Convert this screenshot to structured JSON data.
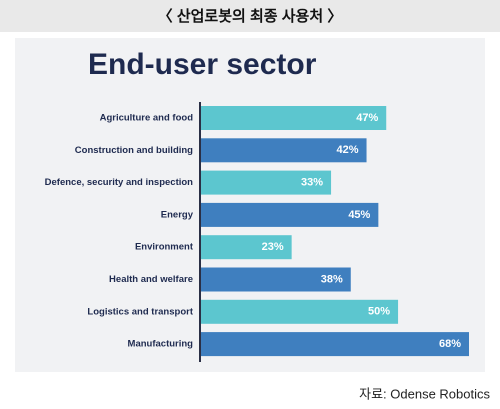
{
  "header": "〈 산업로봇의 최종 사용처 〉",
  "chart_data": {
    "type": "bar",
    "orientation": "horizontal",
    "title": "End-user sector",
    "categories": [
      "Agriculture and food",
      "Construction and building",
      "Defence, security and inspection",
      "Energy",
      "Environment",
      "Health and welfare",
      "Logistics and transport",
      "Manufacturing"
    ],
    "values": [
      47,
      42,
      33,
      45,
      23,
      38,
      50,
      68
    ],
    "value_labels": [
      "47%",
      "42%",
      "33%",
      "45%",
      "23%",
      "38%",
      "50%",
      "68%"
    ],
    "colors": [
      "#5cc6cf",
      "#3f7fbf",
      "#5cc6cf",
      "#3f7fbf",
      "#5cc6cf",
      "#3f7fbf",
      "#5cc6cf",
      "#3f7fbf"
    ]
  },
  "source": "자료: Odense Robotics"
}
